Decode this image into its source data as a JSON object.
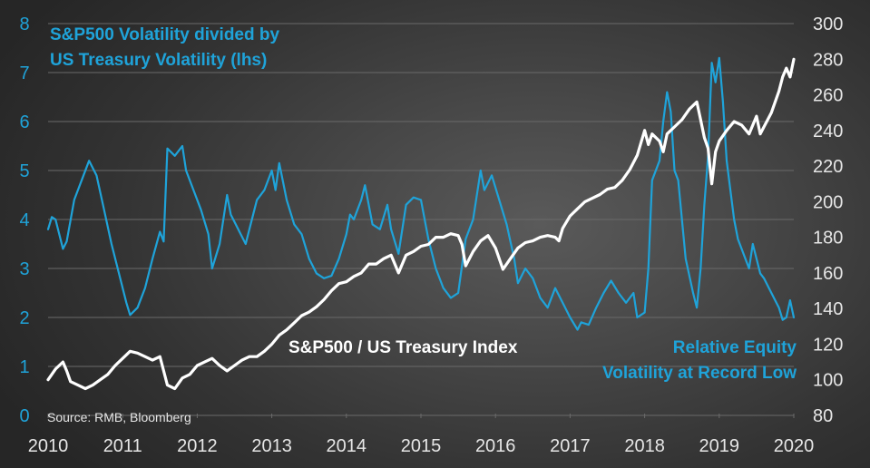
{
  "chart_data": {
    "type": "line",
    "title": "",
    "xlabel": "",
    "x_ticks": [
      "2010",
      "2011",
      "2012",
      "2013",
      "2014",
      "2015",
      "2016",
      "2017",
      "2018",
      "2019",
      "2020"
    ],
    "xlim": [
      2010,
      2020
    ],
    "y_left": {
      "label": "S&P500 Volatility divided by US Treasury Volatility (lhs)",
      "ylim": [
        0,
        8
      ],
      "ticks": [
        "0",
        "1",
        "2",
        "3",
        "4",
        "5",
        "6",
        "7",
        "8"
      ],
      "color": "#1fa3d9"
    },
    "y_right": {
      "label": "S&P500 / US Treasury Index",
      "ylim": [
        80,
        300
      ],
      "ticks": [
        "80",
        "100",
        "120",
        "140",
        "160",
        "180",
        "200",
        "220",
        "240",
        "260",
        "280",
        "300"
      ],
      "color": "#ffffff"
    },
    "grid": true,
    "series": [
      {
        "name": "S&P500 Volatility divided by US Treasury Volatility (lhs)",
        "axis": "left",
        "color": "#1fa3d9",
        "x": [
          2010.0,
          2010.05,
          2010.1,
          2010.2,
          2010.25,
          2010.35,
          2010.45,
          2010.55,
          2010.65,
          2010.75,
          2010.85,
          2010.95,
          2011.05,
          2011.1,
          2011.2,
          2011.3,
          2011.4,
          2011.5,
          2011.55,
          2011.6,
          2011.7,
          2011.8,
          2011.85,
          2011.95,
          2012.05,
          2012.15,
          2012.2,
          2012.3,
          2012.4,
          2012.45,
          2012.55,
          2012.65,
          2012.7,
          2012.8,
          2012.9,
          2013.0,
          2013.05,
          2013.1,
          2013.2,
          2013.3,
          2013.4,
          2013.5,
          2013.6,
          2013.7,
          2013.8,
          2013.9,
          2014.0,
          2014.05,
          2014.1,
          2014.2,
          2014.25,
          2014.35,
          2014.45,
          2014.55,
          2014.6,
          2014.7,
          2014.8,
          2014.9,
          2015.0,
          2015.1,
          2015.2,
          2015.3,
          2015.4,
          2015.5,
          2015.6,
          2015.7,
          2015.8,
          2015.85,
          2015.95,
          2016.05,
          2016.15,
          2016.25,
          2016.3,
          2016.4,
          2016.5,
          2016.6,
          2016.7,
          2016.8,
          2016.9,
          2017.0,
          2017.1,
          2017.15,
          2017.25,
          2017.35,
          2017.45,
          2017.55,
          2017.65,
          2017.75,
          2017.85,
          2017.9,
          2018.0,
          2018.05,
          2018.1,
          2018.2,
          2018.25,
          2018.3,
          2018.35,
          2018.4,
          2018.45,
          2018.55,
          2018.65,
          2018.7,
          2018.75,
          2018.8,
          2018.85,
          2018.9,
          2018.95,
          2019.0,
          2019.05,
          2019.1,
          2019.2,
          2019.25,
          2019.35,
          2019.4,
          2019.45,
          2019.55,
          2019.6,
          2019.7,
          2019.8,
          2019.85,
          2019.9,
          2019.95,
          2020.0
        ],
        "values": [
          3.8,
          4.05,
          4.0,
          3.4,
          3.55,
          4.4,
          4.8,
          5.2,
          4.9,
          4.2,
          3.5,
          2.9,
          2.3,
          2.05,
          2.2,
          2.6,
          3.2,
          3.75,
          3.55,
          5.45,
          5.3,
          5.5,
          5.0,
          4.6,
          4.2,
          3.7,
          3.0,
          3.5,
          4.5,
          4.1,
          3.8,
          3.5,
          3.8,
          4.4,
          4.6,
          5.0,
          4.6,
          5.15,
          4.4,
          3.9,
          3.7,
          3.2,
          2.9,
          2.8,
          2.85,
          3.2,
          3.7,
          4.1,
          4.0,
          4.4,
          4.7,
          3.9,
          3.8,
          4.3,
          3.8,
          3.3,
          4.3,
          4.45,
          4.4,
          3.6,
          3.0,
          2.6,
          2.4,
          2.5,
          3.6,
          4.0,
          5.0,
          4.6,
          4.9,
          4.4,
          3.9,
          3.2,
          2.7,
          3.0,
          2.8,
          2.4,
          2.2,
          2.6,
          2.3,
          2.0,
          1.75,
          1.9,
          1.85,
          2.2,
          2.5,
          2.75,
          2.5,
          2.3,
          2.5,
          2.0,
          2.1,
          3.0,
          4.8,
          5.2,
          6.0,
          6.6,
          6.2,
          5.0,
          4.8,
          3.2,
          2.5,
          2.2,
          3.0,
          4.3,
          5.3,
          7.2,
          6.8,
          7.3,
          6.4,
          5.2,
          4.0,
          3.6,
          3.2,
          3.0,
          3.5,
          2.9,
          2.8,
          2.5,
          2.2,
          1.95,
          2.0,
          2.35,
          2.0
        ]
      },
      {
        "name": "S&P500 / US Treasury Index",
        "axis": "right",
        "color": "#ffffff",
        "x": [
          2010.0,
          2010.1,
          2010.2,
          2010.25,
          2010.3,
          2010.4,
          2010.5,
          2010.6,
          2010.7,
          2010.8,
          2010.9,
          2011.0,
          2011.1,
          2011.2,
          2011.3,
          2011.4,
          2011.5,
          2011.55,
          2011.6,
          2011.7,
          2011.8,
          2011.9,
          2012.0,
          2012.1,
          2012.2,
          2012.3,
          2012.4,
          2012.5,
          2012.6,
          2012.7,
          2012.8,
          2012.9,
          2013.0,
          2013.1,
          2013.2,
          2013.3,
          2013.4,
          2013.5,
          2013.6,
          2013.7,
          2013.8,
          2013.9,
          2014.0,
          2014.1,
          2014.2,
          2014.3,
          2014.4,
          2014.5,
          2014.6,
          2014.7,
          2014.8,
          2014.9,
          2015.0,
          2015.1,
          2015.2,
          2015.3,
          2015.4,
          2015.5,
          2015.55,
          2015.6,
          2015.7,
          2015.8,
          2015.9,
          2016.0,
          2016.1,
          2016.2,
          2016.3,
          2016.4,
          2016.5,
          2016.6,
          2016.7,
          2016.8,
          2016.85,
          2016.9,
          2017.0,
          2017.1,
          2017.2,
          2017.3,
          2017.4,
          2017.5,
          2017.6,
          2017.7,
          2017.8,
          2017.9,
          2018.0,
          2018.05,
          2018.1,
          2018.2,
          2018.25,
          2018.3,
          2018.4,
          2018.5,
          2018.6,
          2018.7,
          2018.75,
          2018.8,
          2018.85,
          2018.9,
          2018.95,
          2019.0,
          2019.1,
          2019.2,
          2019.3,
          2019.4,
          2019.5,
          2019.55,
          2019.6,
          2019.7,
          2019.8,
          2019.85,
          2019.9,
          2019.95,
          2020.0
        ],
        "values": [
          100,
          106,
          110,
          105,
          99,
          97,
          95,
          97,
          100,
          103,
          108,
          112,
          116,
          115,
          113,
          111,
          113,
          105,
          97,
          95,
          101,
          103,
          108,
          110,
          112,
          108,
          105,
          108,
          111,
          113,
          113,
          116,
          120,
          125,
          128,
          132,
          136,
          138,
          141,
          145,
          150,
          154,
          155,
          158,
          160,
          165,
          165,
          168,
          170,
          160,
          170,
          172,
          175,
          176,
          180,
          180,
          182,
          181,
          176,
          164,
          172,
          178,
          181,
          174,
          162,
          168,
          174,
          177,
          178,
          180,
          181,
          180,
          178,
          185,
          192,
          196,
          200,
          202,
          204,
          207,
          208,
          212,
          218,
          226,
          240,
          232,
          238,
          234,
          228,
          238,
          242,
          246,
          252,
          256,
          246,
          236,
          230,
          210,
          228,
          234,
          240,
          245,
          243,
          238,
          248,
          238,
          242,
          250,
          262,
          270,
          275,
          270,
          280
        ]
      }
    ],
    "annotations": {
      "left_axis_title_line1": "S&P500 Volatility divided by",
      "left_axis_title_line2": "US Treasury Volatility (lhs)",
      "index_label": "S&P500 / US Treasury  Index",
      "record_low_line1": "Relative Equity",
      "record_low_line2": "Volatility at Record Low",
      "source": "Source: RMB, Bloomberg"
    }
  }
}
